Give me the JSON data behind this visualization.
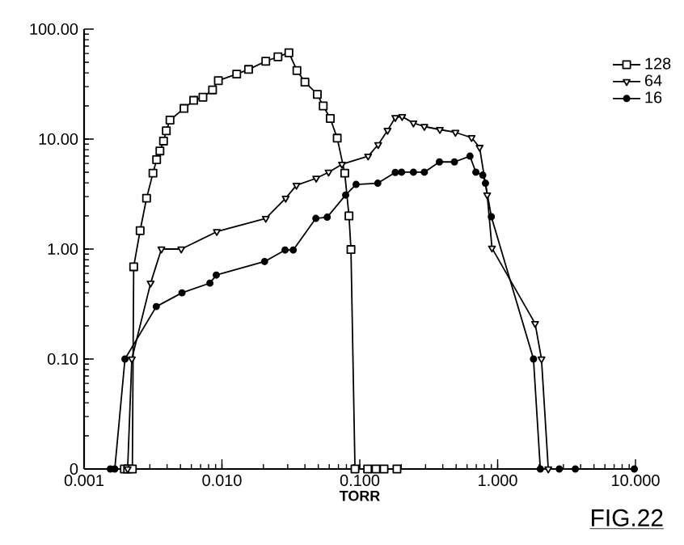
{
  "chart_data": {
    "type": "line",
    "xlabel": "TORR",
    "log": "xy",
    "legend": "top right",
    "xlim": [
      0.001,
      10
    ],
    "ylim": [
      0.01,
      100
    ],
    "xticks": [
      {
        "value": 0.001,
        "label": "0.001"
      },
      {
        "value": 0.01,
        "label": "0.010"
      },
      {
        "value": 0.1,
        "label": "0.100"
      },
      {
        "value": 1,
        "label": "1.000"
      },
      {
        "value": 10,
        "label": "10.000"
      }
    ],
    "yticks": [
      {
        "value": 0.01,
        "label": "0"
      },
      {
        "value": 0.1,
        "label": "0.10"
      },
      {
        "value": 1,
        "label": "1.00"
      },
      {
        "value": 10,
        "label": "10.00"
      },
      {
        "value": 100,
        "label": "100.00"
      }
    ],
    "annotations": [
      "FIG.22"
    ],
    "series": [
      {
        "name": "128",
        "color": "#000000",
        "marker": "square",
        "x": [
          0.00196,
          0.00207,
          0.00224,
          0.00229,
          0.00255,
          0.00284,
          0.00316,
          0.00336,
          0.00355,
          0.00377,
          0.00395,
          0.0042,
          0.00531,
          0.00624,
          0.00728,
          0.00855,
          0.00942,
          0.0128,
          0.0156,
          0.0208,
          0.0255,
          0.0306,
          0.035,
          0.04,
          0.0492,
          0.0543,
          0.0611,
          0.0686,
          0.0778,
          0.0835,
          0.0863,
          0.0923,
          0.114,
          0.131,
          0.15,
          0.186
        ],
        "values": [
          0.01,
          0.01,
          0.01,
          0.69,
          1.47,
          2.9,
          4.9,
          6.5,
          7.8,
          9.6,
          11.9,
          14.9,
          19,
          22.5,
          24,
          28,
          34,
          39,
          43,
          51,
          56,
          61,
          42,
          33,
          25.5,
          20,
          15.4,
          10.2,
          4.9,
          2.0,
          0.99,
          0.01,
          0.01,
          0.01,
          0.01,
          0.01
        ]
      },
      {
        "name": "64",
        "color": "#000000",
        "marker": "triangle",
        "x": [
          0.00207,
          0.00222,
          0.00304,
          0.00364,
          0.00507,
          0.00918,
          0.0208,
          0.029,
          0.0347,
          0.0483,
          0.0594,
          0.0743,
          0.115,
          0.136,
          0.159,
          0.181,
          0.203,
          0.245,
          0.294,
          0.381,
          0.494,
          0.647,
          0.74,
          0.84,
          0.91,
          1.87,
          2.08,
          2.33
        ],
        "values": [
          0.01,
          0.1,
          0.49,
          1.0,
          1.0,
          1.44,
          1.9,
          2.9,
          3.8,
          4.4,
          5.0,
          5.9,
          7.0,
          8.9,
          12,
          15.7,
          16,
          14,
          13,
          12.2,
          11.5,
          10.3,
          8.4,
          3.1,
          1.02,
          0.21,
          0.1,
          0.01
        ]
      },
      {
        "name": "16",
        "color": "#000000",
        "marker": "circle",
        "x": [
          0.00155,
          0.00167,
          0.00198,
          0.00334,
          0.00513,
          0.00818,
          0.0091,
          0.0204,
          0.0287,
          0.0329,
          0.048,
          0.058,
          0.079,
          0.094,
          0.135,
          0.181,
          0.201,
          0.245,
          0.294,
          0.378,
          0.486,
          0.63,
          0.695,
          0.78,
          0.816,
          0.9,
          1.82,
          2.04,
          2.8,
          3.66,
          9.8
        ],
        "values": [
          0.01,
          0.01,
          0.1,
          0.3,
          0.4,
          0.49,
          0.58,
          0.77,
          0.98,
          0.98,
          1.9,
          1.95,
          3.1,
          3.87,
          3.97,
          4.97,
          5.0,
          5.0,
          5.0,
          6.2,
          6.2,
          7.0,
          5.0,
          4.7,
          3.97,
          1.97,
          0.1,
          0.01,
          0.01,
          0.01,
          0.01
        ]
      }
    ]
  }
}
